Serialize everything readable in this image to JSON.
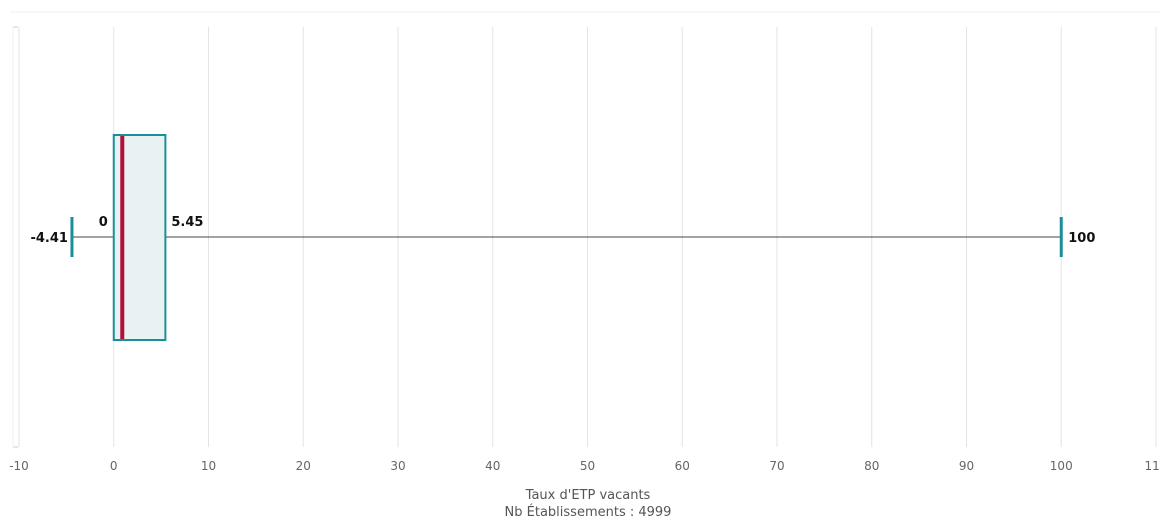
{
  "chart_data": {
    "type": "boxplot",
    "orientation": "horizontal",
    "xlabel": "Taux d'ETP vacants",
    "subtitle": "Nb Établissements : 4999",
    "xlim": [
      -10,
      110
    ],
    "ticks": [
      -10,
      0,
      10,
      20,
      30,
      40,
      50,
      60,
      70,
      80,
      90,
      100,
      110
    ],
    "grid": true,
    "box": {
      "whisker_low": -4.41,
      "q1": 0,
      "median": 0.9,
      "q3": 5.45,
      "whisker_high": 100
    },
    "value_labels": {
      "whisker_low": "-4.41",
      "q1": "0",
      "q3": "5.45",
      "whisker_high": "100"
    },
    "colors": {
      "box_stroke": "#1a8f9a",
      "box_fill": "#e8f2f3",
      "median": "#b0103a",
      "whisker_line": "#444444",
      "whisker_cap": "#1a8f9a",
      "grid": "#e3e3e3"
    }
  }
}
